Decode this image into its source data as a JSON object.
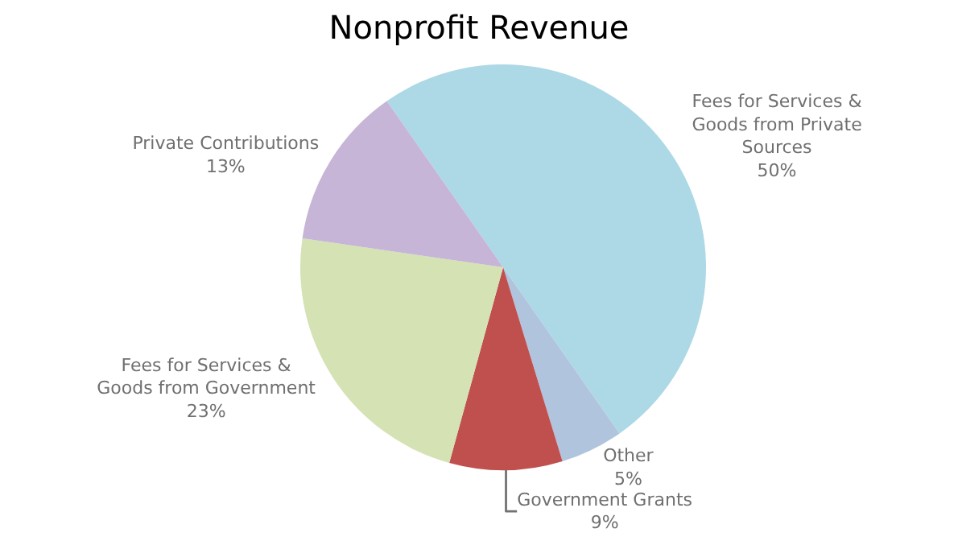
{
  "chart_data": {
    "type": "pie",
    "title": "Nonprofit Revenue",
    "categories": [
      "Fees for Services & Goods from Private Sources",
      "Other",
      "Government Grants",
      "Fees for Services & Goods from Government",
      "Private Contributions"
    ],
    "values": [
      50,
      5,
      9,
      23,
      13
    ],
    "value_labels": [
      "50%",
      "5%",
      "9%",
      "23%",
      "13%"
    ],
    "colors": [
      "#add8e6",
      "#b0c4de",
      "#c0504d",
      "#d4e2b4",
      "#c6b5d6"
    ],
    "legend": false
  }
}
